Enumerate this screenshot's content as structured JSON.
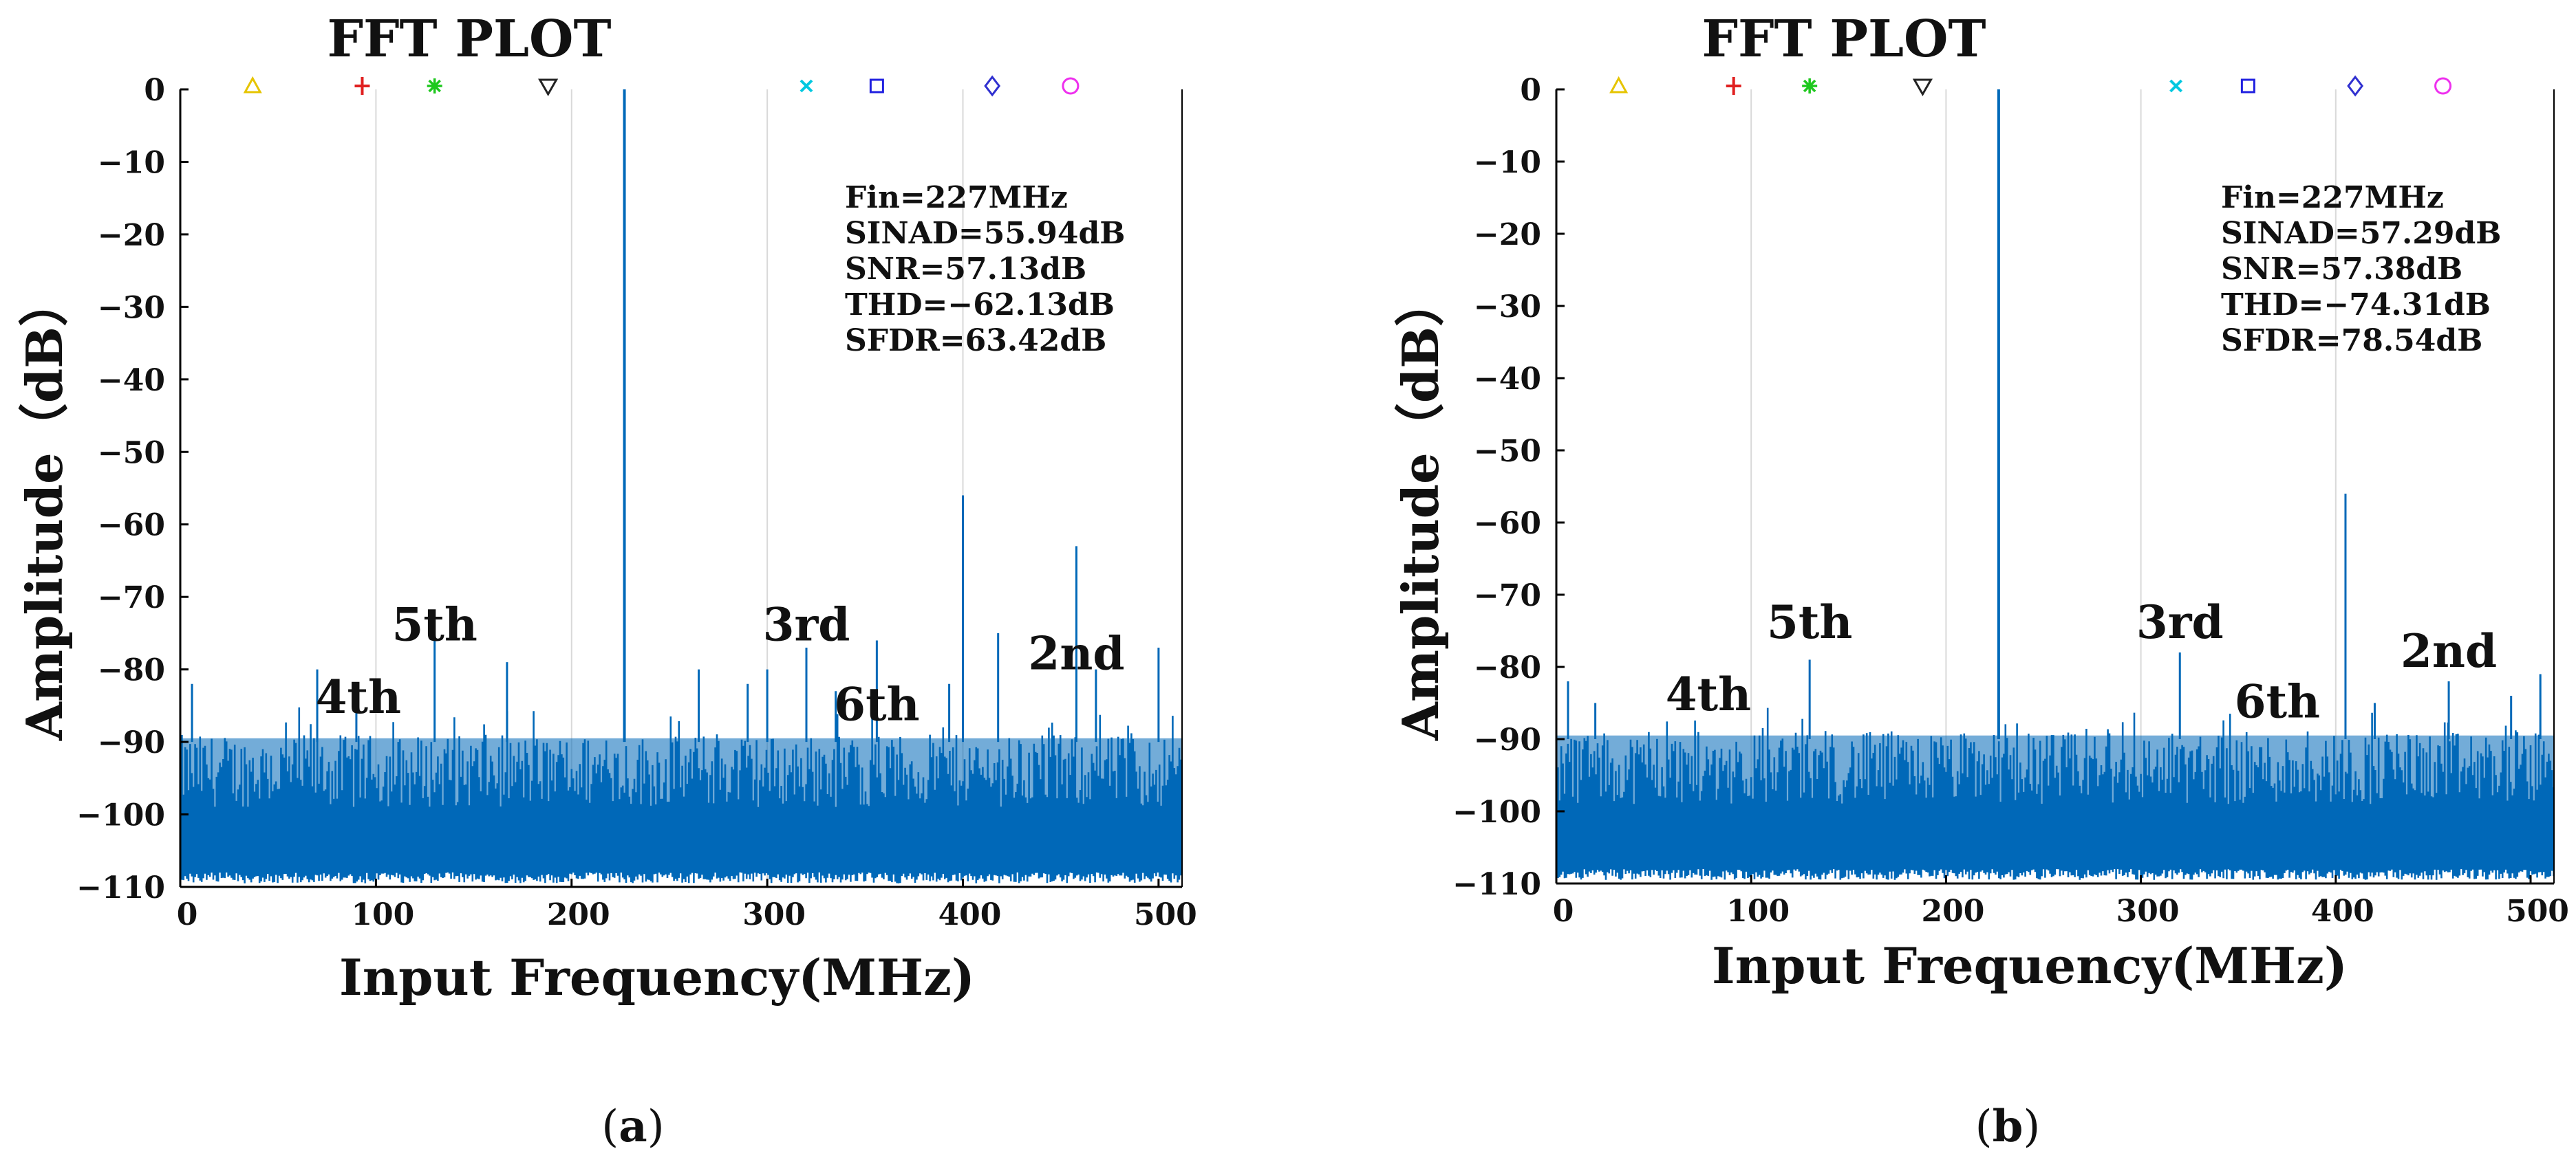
{
  "figure": {
    "panels": [
      {
        "id": "a",
        "caption_prefix": "(",
        "caption_letter": "a",
        "caption_suffix": ")"
      },
      {
        "id": "b",
        "caption_prefix": "(",
        "caption_letter": "b",
        "caption_suffix": ")"
      }
    ]
  },
  "colors": {
    "spectrum": "#0068b8",
    "grid": "#d9d9d9",
    "axis": "#000000",
    "text": "#111111",
    "marker_triangle": "#e6c400",
    "marker_plus": "#e02020",
    "marker_star": "#1ec81e",
    "marker_tri_down": "#222222",
    "marker_x": "#00c8e0",
    "marker_square": "#2020e0",
    "marker_diamond": "#3030d0",
    "marker_circle": "#ee30ee"
  },
  "chart_data": [
    {
      "type": "line",
      "panel": "a",
      "title": "FFT PLOT",
      "xlabel": "Input Frequency(MHz)",
      "ylabel": "Amplitude（dB）",
      "xlim": [
        0,
        512
      ],
      "ylim": [
        -110,
        0
      ],
      "xticks": [
        0,
        100,
        200,
        300,
        400,
        500
      ],
      "yticks": [
        0,
        -10,
        -20,
        -30,
        -40,
        -50,
        -60,
        -70,
        -80,
        -90,
        -100,
        -110
      ],
      "vgrid": [
        100,
        200,
        300,
        400
      ],
      "grid": true,
      "noise_floor_db": -90,
      "noise_bottom_db": -110,
      "series": [
        {
          "name": "spectrum",
          "fundamental": {
            "freq": 227,
            "db": 0
          },
          "spurs": [
            {
              "freq": 6,
              "db": -82
            },
            {
              "freq": 70,
              "db": -80
            },
            {
              "freq": 90,
              "db": -82
            },
            {
              "freq": 130,
              "db": -76
            },
            {
              "freq": 167,
              "db": -79
            },
            {
              "freq": 265,
              "db": -80
            },
            {
              "freq": 290,
              "db": -82
            },
            {
              "freq": 300,
              "db": -80
            },
            {
              "freq": 320,
              "db": -77
            },
            {
              "freq": 335,
              "db": -83
            },
            {
              "freq": 356,
              "db": -76
            },
            {
              "freq": 393,
              "db": -82
            },
            {
              "freq": 400,
              "db": -56
            },
            {
              "freq": 418,
              "db": -75
            },
            {
              "freq": 458,
              "db": -63
            },
            {
              "freq": 468,
              "db": -80
            },
            {
              "freq": 500,
              "db": -77
            }
          ]
        }
      ],
      "stats": [
        "Fin=227MHz",
        "SINAD=55.94dB",
        "SNR=57.13dB",
        "THD=−62.13dB",
        "SFDR=63.42dB"
      ],
      "harmonic_labels": [
        {
          "text": "5th",
          "freq": 130,
          "db": -76
        },
        {
          "text": "4th",
          "freq": 91,
          "db": -86
        },
        {
          "text": "3rd",
          "freq": 320,
          "db": -76
        },
        {
          "text": "6th",
          "freq": 356,
          "db": -87
        },
        {
          "text": "2nd",
          "freq": 458,
          "db": -80
        }
      ],
      "markers": [
        {
          "shape": "triangle",
          "freq": 37
        },
        {
          "shape": "plus",
          "freq": 93
        },
        {
          "shape": "star",
          "freq": 130
        },
        {
          "shape": "tri_down",
          "freq": 188
        },
        {
          "shape": "x",
          "freq": 320
        },
        {
          "shape": "square",
          "freq": 356
        },
        {
          "shape": "diamond",
          "freq": 415
        },
        {
          "shape": "circle",
          "freq": 455
        }
      ]
    },
    {
      "type": "line",
      "panel": "b",
      "title": "FFT PLOT",
      "xlabel": "Input Frequency(MHz)",
      "ylabel": "Amplitude（dB）",
      "xlim": [
        0,
        512
      ],
      "ylim": [
        -110,
        0
      ],
      "xticks": [
        0,
        100,
        200,
        300,
        400,
        500
      ],
      "yticks": [
        0,
        -10,
        -20,
        -30,
        -40,
        -50,
        -60,
        -70,
        -80,
        -90,
        -100,
        -110
      ],
      "vgrid": [
        100,
        200,
        300,
        400
      ],
      "grid": true,
      "noise_floor_db": -90,
      "noise_bottom_db": -110,
      "series": [
        {
          "name": "spectrum",
          "fundamental": {
            "freq": 227,
            "db": 0
          },
          "spurs": [
            {
              "freq": 6,
              "db": -82
            },
            {
              "freq": 20,
              "db": -85
            },
            {
              "freq": 130,
              "db": -79
            },
            {
              "freq": 320,
              "db": -78
            },
            {
              "freq": 405,
              "db": -56
            },
            {
              "freq": 420,
              "db": -85
            },
            {
              "freq": 458,
              "db": -82
            },
            {
              "freq": 490,
              "db": -84
            },
            {
              "freq": 505,
              "db": -81
            }
          ]
        }
      ],
      "stats": [
        "Fin=227MHz",
        "SINAD=57.29dB",
        "SNR=57.38dB",
        "THD=−74.31dB",
        "SFDR=78.54dB"
      ],
      "harmonic_labels": [
        {
          "text": "5th",
          "freq": 130,
          "db": -76
        },
        {
          "text": "4th",
          "freq": 78,
          "db": -86
        },
        {
          "text": "3rd",
          "freq": 320,
          "db": -76
        },
        {
          "text": "6th",
          "freq": 370,
          "db": -87
        },
        {
          "text": "2nd",
          "freq": 458,
          "db": -80
        }
      ],
      "markers": [
        {
          "shape": "triangle",
          "freq": 32
        },
        {
          "shape": "plus",
          "freq": 91
        },
        {
          "shape": "star",
          "freq": 130
        },
        {
          "shape": "tri_down",
          "freq": 188
        },
        {
          "shape": "x",
          "freq": 318
        },
        {
          "shape": "square",
          "freq": 355
        },
        {
          "shape": "diamond",
          "freq": 410
        },
        {
          "shape": "circle",
          "freq": 455
        }
      ]
    }
  ]
}
